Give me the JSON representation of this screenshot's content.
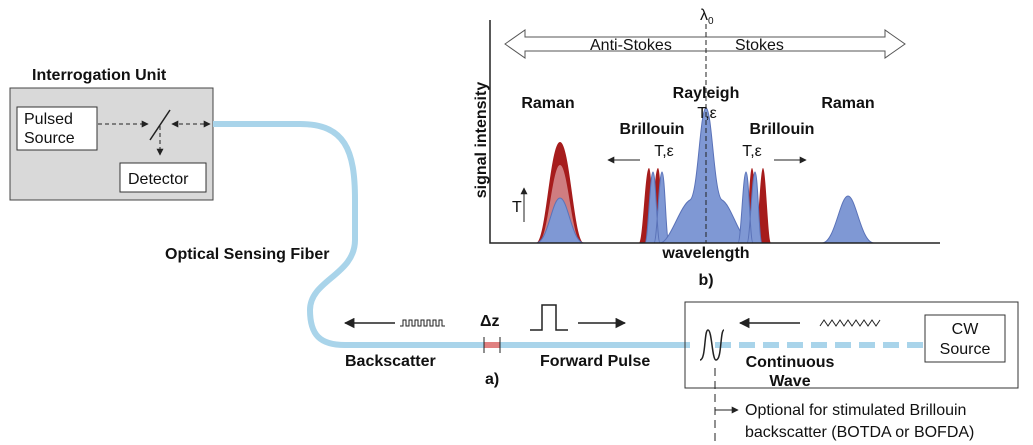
{
  "interrogation_unit": {
    "title": "Interrogation Unit",
    "pulsed_source": [
      "Pulsed",
      "Source"
    ],
    "detector": "Detector"
  },
  "fiber_label": "Optical Sensing Fiber",
  "spectrum": {
    "lambda": "λ",
    "lambda_sub": "0",
    "anti_stokes": "Anti-Stokes",
    "stokes": "Stokes",
    "rayleigh": "Rayleigh",
    "rayleigh_param": "T,ε",
    "raman_left": "Raman",
    "raman_right": "Raman",
    "brillouin_left": "Brillouin",
    "brillouin_right": "Brillouin",
    "brillouin_left_param": "T,ε",
    "brillouin_right_param": "T,ε",
    "y_axis": "signal intensity",
    "t_arrow": "T",
    "x_axis": "wavelength",
    "panel": "b)"
  },
  "fiber_section": {
    "backscatter": "Backscatter",
    "delta_z": "Δz",
    "panel": "a)",
    "forward_pulse": "Forward Pulse",
    "continuous_wave": [
      "Continuous",
      "Wave"
    ],
    "cw_source": [
      "CW",
      "Source"
    ],
    "optional_note": [
      "Optional for stimulated Brillouin",
      "backscatter (BOTDA or BOFDA)"
    ]
  }
}
